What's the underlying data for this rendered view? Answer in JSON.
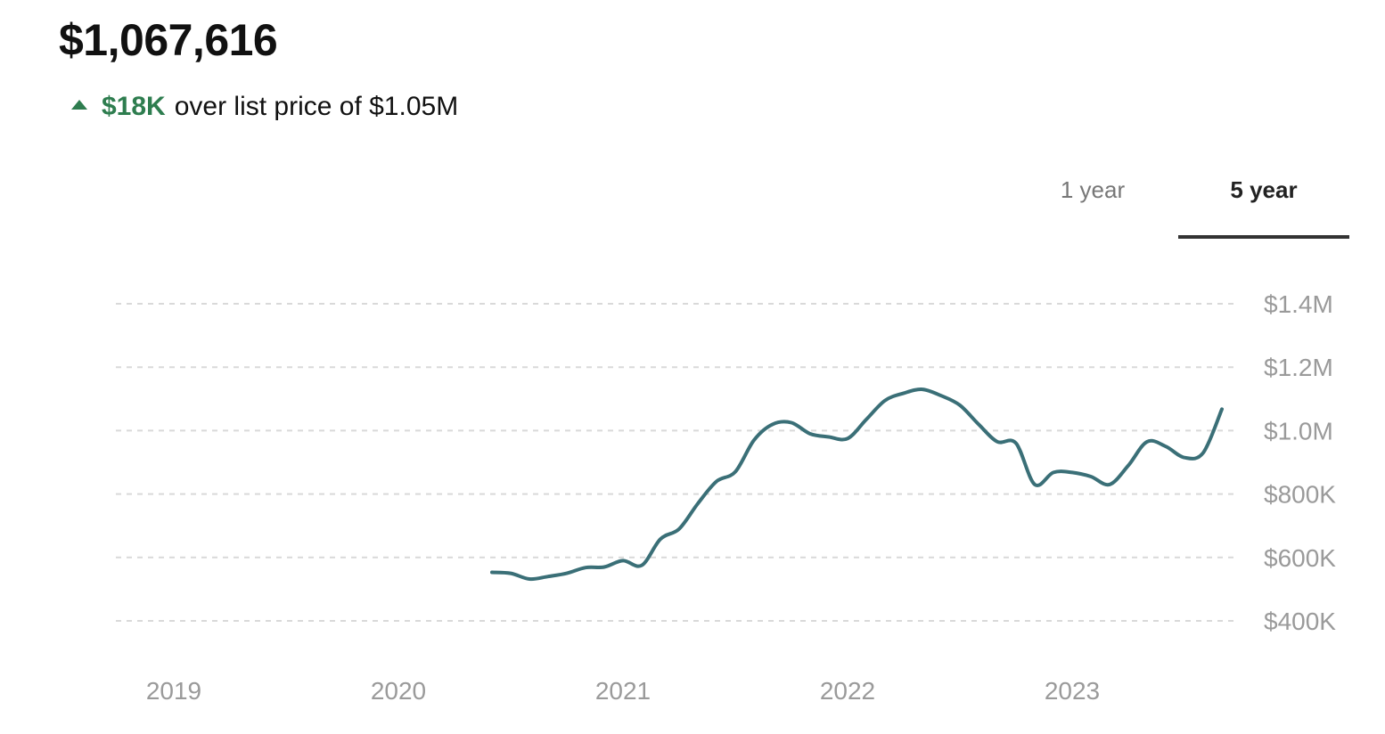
{
  "header": {
    "price": "$1,067,616",
    "delta_amount": "$18K",
    "delta_text": "over list price of $1.05M"
  },
  "tabs": [
    {
      "label": "1 year",
      "active": false
    },
    {
      "label": "5 year",
      "active": true
    }
  ],
  "colors": {
    "accent_green": "#2e7d4f",
    "line": "#3a6f77",
    "grid": "#d9d9d9",
    "axis_text": "#9a9a9a"
  },
  "chart_data": {
    "type": "line",
    "title": "",
    "xlabel": "",
    "ylabel": "",
    "x_ticks": [
      "2019",
      "2020",
      "2021",
      "2022",
      "2023"
    ],
    "y_ticks": [
      {
        "value": 1400000,
        "label": "$1.4M"
      },
      {
        "value": 1200000,
        "label": "$1.2M"
      },
      {
        "value": 1000000,
        "label": "$1.0M"
      },
      {
        "value": 800000,
        "label": "$800K"
      },
      {
        "value": 600000,
        "label": "$600K"
      },
      {
        "value": 400000,
        "label": "$400K"
      }
    ],
    "xlim": [
      "2018-10",
      "2023-10"
    ],
    "ylim": [
      400000,
      1400000
    ],
    "grid": true,
    "y_axis_side": "right",
    "series": [
      {
        "points": [
          [
            "2020-06",
            553000
          ],
          [
            "2020-07",
            550000
          ],
          [
            "2020-08",
            532000
          ],
          [
            "2020-09",
            540000
          ],
          [
            "2020-10",
            550000
          ],
          [
            "2020-11",
            568000
          ],
          [
            "2020-12",
            570000
          ],
          [
            "2021-01",
            590000
          ],
          [
            "2021-02",
            575000
          ],
          [
            "2021-03",
            658000
          ],
          [
            "2021-04",
            690000
          ],
          [
            "2021-05",
            770000
          ],
          [
            "2021-06",
            840000
          ],
          [
            "2021-07",
            870000
          ],
          [
            "2021-08",
            970000
          ],
          [
            "2021-09",
            1020000
          ],
          [
            "2021-10",
            1025000
          ],
          [
            "2021-11",
            990000
          ],
          [
            "2021-12",
            980000
          ],
          [
            "2022-01",
            975000
          ],
          [
            "2022-02",
            1035000
          ],
          [
            "2022-03",
            1095000
          ],
          [
            "2022-04",
            1118000
          ],
          [
            "2022-05",
            1130000
          ],
          [
            "2022-06",
            1110000
          ],
          [
            "2022-07",
            1080000
          ],
          [
            "2022-08",
            1020000
          ],
          [
            "2022-09",
            965000
          ],
          [
            "2022-10",
            960000
          ],
          [
            "2022-11",
            830000
          ],
          [
            "2022-12",
            868000
          ],
          [
            "2023-01",
            868000
          ],
          [
            "2023-02",
            855000
          ],
          [
            "2023-03",
            830000
          ],
          [
            "2023-04",
            890000
          ],
          [
            "2023-05",
            965000
          ],
          [
            "2023-06",
            950000
          ],
          [
            "2023-07",
            915000
          ],
          [
            "2023-08",
            930000
          ],
          [
            "2023-09",
            1067616
          ]
        ]
      }
    ]
  }
}
